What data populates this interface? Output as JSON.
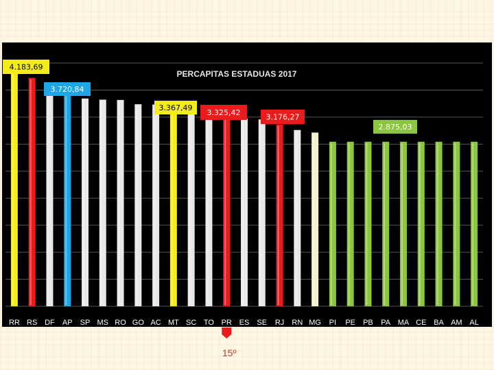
{
  "chart_data": {
    "type": "bar",
    "title": "PERCAPITAS ESTADUAS 2017",
    "categories": [
      "RR",
      "RS",
      "DF",
      "AP",
      "SP",
      "MS",
      "RO",
      "GO",
      "AC",
      "MT",
      "SC",
      "TO",
      "PR",
      "ES",
      "SE",
      "RJ",
      "RN",
      "MG",
      "PI",
      "PE",
      "PB",
      "PA",
      "MA",
      "CE",
      "BA",
      "AM",
      "AL"
    ],
    "values": [
      4183.69,
      3990,
      3850,
      3720.84,
      3630,
      3610,
      3605,
      3530,
      3525,
      3367.49,
      3360,
      3352,
      3325.42,
      3280,
      3265,
      3176.27,
      3080,
      3035,
      2875.03,
      2875.03,
      2875.03,
      2875.03,
      2875.03,
      2875.03,
      2875.03,
      2875.03,
      2875.03
    ],
    "colors": [
      "#f4ec18",
      "#e81c1c",
      "#e8e8e8",
      "#1ea7e6",
      "#e8e8e8",
      "#e8e8e8",
      "#e8e8e8",
      "#e8e8e8",
      "#e8e8e8",
      "#f4ec18",
      "#e8e8e8",
      "#e8e8e8",
      "#e81c1c",
      "#e8e8e8",
      "#e8e8e8",
      "#e81c1c",
      "#e8e8e8",
      "#f2f2d0",
      "#8cc63f",
      "#8cc63f",
      "#8cc63f",
      "#8cc63f",
      "#8cc63f",
      "#8cc63f",
      "#8cc63f",
      "#8cc63f",
      "#8cc63f"
    ],
    "ylim": [
      0,
      4250
    ],
    "grid": true,
    "annotations": [
      {
        "text": "4.183,69",
        "bg": "#f4ec18",
        "fg": "#000000"
      },
      {
        "text": "3.720,84",
        "bg": "#1ea7e6",
        "fg": "#ffffff"
      },
      {
        "text": "3.367,49",
        "bg": "#f4ec18",
        "fg": "#000000"
      },
      {
        "text": "3.325,42",
        "bg": "#e81c1c",
        "fg": "#ffffff"
      },
      {
        "text": "3.176,27",
        "bg": "#e81c1c",
        "fg": "#ffffff"
      },
      {
        "text": "2.875,03",
        "bg": "#8cc63f",
        "fg": "#ffffff"
      }
    ]
  },
  "rank_marker": {
    "label": "15º",
    "category": "PR",
    "color": "#e81c1c"
  }
}
